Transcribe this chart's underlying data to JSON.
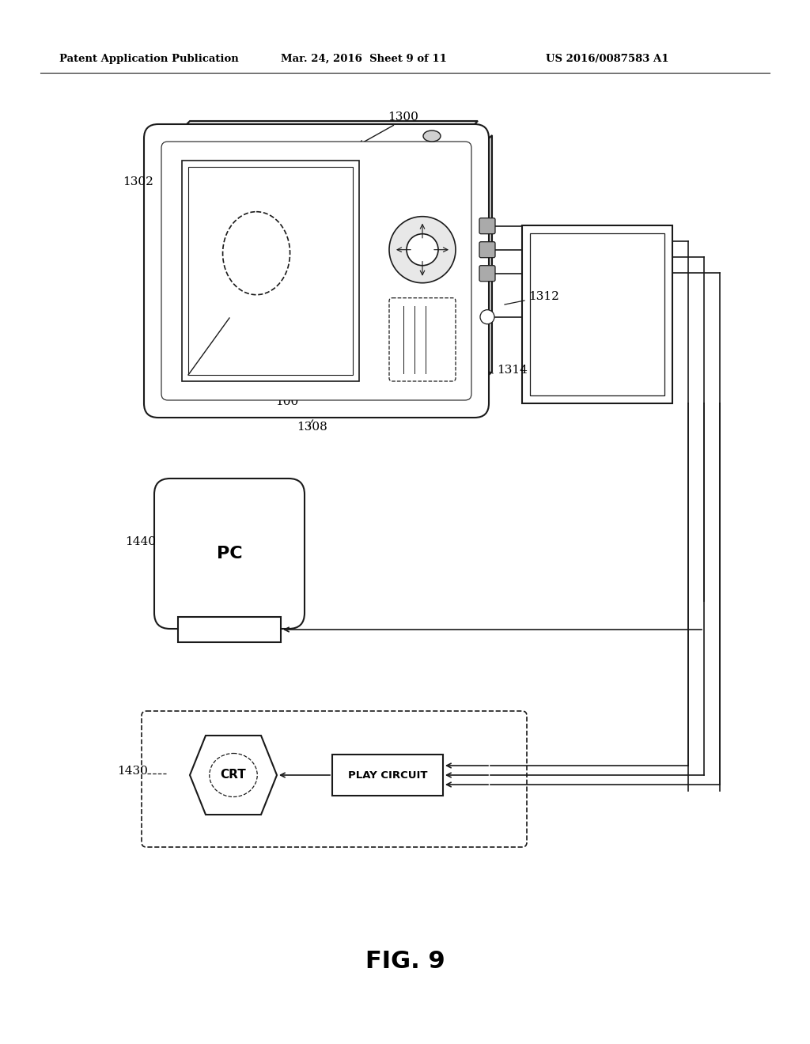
{
  "bg_color": "#ffffff",
  "header_left": "Patent Application Publication",
  "header_mid": "Mar. 24, 2016  Sheet 9 of 11",
  "header_right": "US 2016/0087583 A1",
  "fig_label": "FIG. 9",
  "black": "#1a1a1a",
  "gray_light": "#d8d8d8",
  "gray_med": "#b0b0b0"
}
